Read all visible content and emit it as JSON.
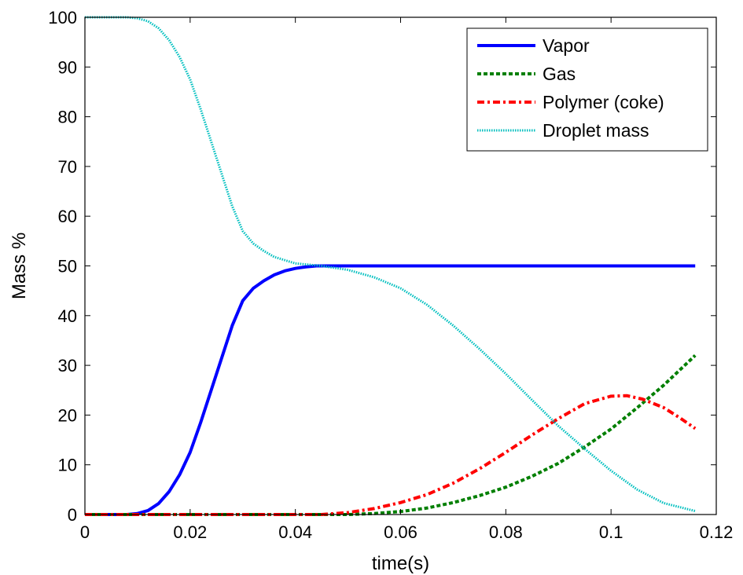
{
  "chart_data": {
    "type": "line",
    "xlabel": "time(s)",
    "ylabel": "Mass %",
    "xlim": [
      0,
      0.12
    ],
    "ylim": [
      0,
      100
    ],
    "xticks": [
      0,
      0.02,
      0.04,
      0.06,
      0.08,
      0.1,
      0.12
    ],
    "xtick_labels": [
      "0",
      "0.02",
      "0.04",
      "0.06",
      "0.08",
      "0.1",
      "0.12"
    ],
    "yticks": [
      0,
      10,
      20,
      30,
      40,
      50,
      60,
      70,
      80,
      90,
      100
    ],
    "ytick_labels": [
      "0",
      "10",
      "20",
      "30",
      "40",
      "50",
      "60",
      "70",
      "80",
      "90",
      "100"
    ],
    "grid": false,
    "legend_position": "top-right",
    "series": [
      {
        "name": "Vapor",
        "color": "#0000ff",
        "style": "solid",
        "x": [
          0,
          0.008,
          0.01,
          0.012,
          0.014,
          0.016,
          0.018,
          0.02,
          0.022,
          0.024,
          0.026,
          0.028,
          0.03,
          0.032,
          0.034,
          0.036,
          0.038,
          0.04,
          0.042,
          0.044,
          0.05,
          0.06,
          0.07,
          0.08,
          0.09,
          0.1,
          0.116
        ],
        "y": [
          0,
          0,
          0.2,
          0.8,
          2.2,
          4.6,
          8.0,
          12.5,
          18.5,
          25.0,
          31.5,
          38.0,
          43.0,
          45.5,
          47.0,
          48.2,
          49.0,
          49.5,
          49.8,
          50.0,
          50.0,
          50.0,
          50.0,
          50.0,
          50.0,
          50.0,
          50.0
        ]
      },
      {
        "name": "Gas",
        "color": "#007f00",
        "style": "dashed",
        "x": [
          0,
          0.05,
          0.055,
          0.06,
          0.065,
          0.07,
          0.075,
          0.08,
          0.085,
          0.09,
          0.095,
          0.1,
          0.105,
          0.11,
          0.116
        ],
        "y": [
          0,
          0,
          0.2,
          0.6,
          1.3,
          2.4,
          3.8,
          5.5,
          7.7,
          10.3,
          13.6,
          17.2,
          21.5,
          26.0,
          32.0
        ]
      },
      {
        "name": "Polymer (coke)",
        "color": "#ff0000",
        "style": "dash-dot",
        "x": [
          0,
          0.045,
          0.05,
          0.055,
          0.06,
          0.065,
          0.07,
          0.075,
          0.08,
          0.085,
          0.09,
          0.095,
          0.1,
          0.103,
          0.106,
          0.11,
          0.113,
          0.116
        ],
        "y": [
          0,
          0,
          0.4,
          1.2,
          2.4,
          4.0,
          6.3,
          9.2,
          12.5,
          16.0,
          19.3,
          22.3,
          23.8,
          23.9,
          23.2,
          21.5,
          19.5,
          17.3
        ]
      },
      {
        "name": "Droplet mass",
        "color": "#00bfbf",
        "style": "dotted",
        "x": [
          0,
          0.008,
          0.01,
          0.012,
          0.014,
          0.016,
          0.018,
          0.02,
          0.022,
          0.024,
          0.026,
          0.028,
          0.03,
          0.032,
          0.034,
          0.036,
          0.04,
          0.045,
          0.05,
          0.055,
          0.06,
          0.065,
          0.07,
          0.075,
          0.08,
          0.085,
          0.09,
          0.095,
          0.1,
          0.105,
          0.11,
          0.116
        ],
        "y": [
          100,
          100,
          99.8,
          99.2,
          97.8,
          95.4,
          92.0,
          87.5,
          81.5,
          75.0,
          68.5,
          62.0,
          57.0,
          54.5,
          53.0,
          51.8,
          50.5,
          50.0,
          49.2,
          47.7,
          45.5,
          42.2,
          38.0,
          33.3,
          28.3,
          23.0,
          17.8,
          13.2,
          8.8,
          5.0,
          2.3,
          0.7
        ]
      }
    ]
  }
}
